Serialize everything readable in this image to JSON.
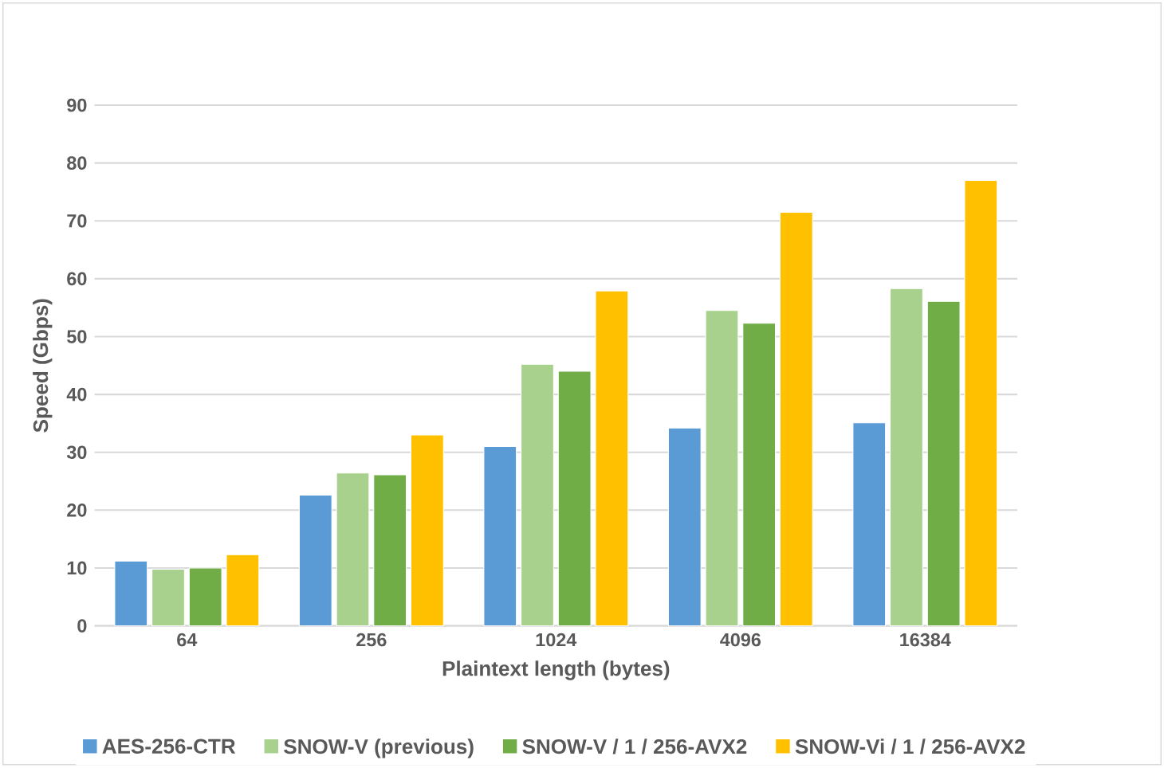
{
  "chart_data": {
    "type": "bar",
    "xlabel": "Plaintext length (bytes)",
    "ylabel": "Speed (Gbps)",
    "categories": [
      "64",
      "256",
      "1024",
      "4096",
      "16384"
    ],
    "series": [
      {
        "name": "AES-256-CTR",
        "color": "#5b9bd5",
        "values": [
          11.2,
          22.6,
          31,
          34.2,
          35.1
        ]
      },
      {
        "name": "SNOW-V (previous)",
        "color": "#a9d18e",
        "values": [
          9.8,
          26.4,
          45.2,
          54.5,
          58.3
        ]
      },
      {
        "name": "SNOW-V / 1 / 256-AVX2",
        "color": "#70ad47",
        "values": [
          10,
          26.1,
          44,
          52.3,
          56.1
        ]
      },
      {
        "name": "SNOW-Vi / 1 / 256-AVX2",
        "color": "#ffc000",
        "values": [
          12.3,
          33,
          57.9,
          71.5,
          77
        ]
      }
    ],
    "ylim": [
      0,
      90
    ],
    "yticks": [
      0,
      10,
      20,
      30,
      40,
      50,
      60,
      70,
      80,
      90
    ],
    "grid": "y",
    "legend": "bottom"
  }
}
